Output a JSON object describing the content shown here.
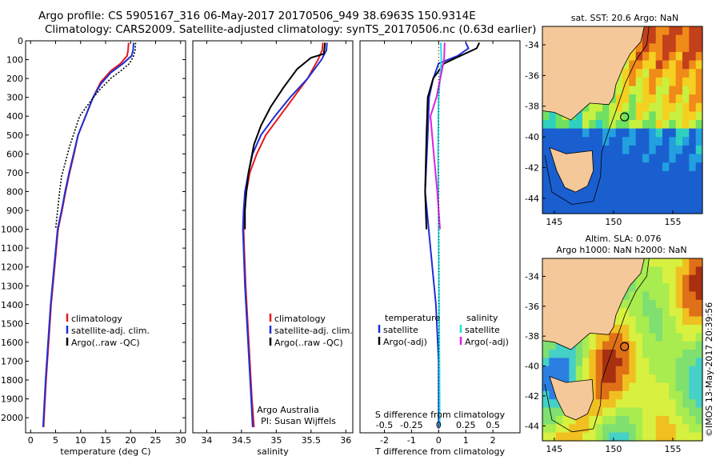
{
  "header": {
    "line1": "Argo profile: CS 5905167_316 06-May-2017 20170506_949 38.6963S 150.9314E",
    "line2": "Climatology: CARS2009. Satellite-adjusted climatology: synTS_20170506.nc (0.63d earlier)"
  },
  "colors": {
    "climatology": "#e31a1c",
    "satellite": "#1f2fd6",
    "argo": "#000000",
    "sal_satellite": "#22dddd",
    "sal_argo": "#dd22dd",
    "land": "#f5c89a"
  },
  "chart_data": [
    {
      "type": "line",
      "id": "temperature",
      "xlabel": "temperature (deg C)",
      "xlim": [
        -1,
        31
      ],
      "ylim": [
        0,
        2080
      ],
      "xticks": [
        0,
        5,
        10,
        15,
        20,
        25,
        30
      ],
      "yticks": [
        0,
        100,
        200,
        300,
        400,
        500,
        600,
        700,
        800,
        900,
        1000,
        1100,
        1200,
        1300,
        1400,
        1500,
        1600,
        1700,
        1800,
        1900,
        2000
      ],
      "legend": [
        "climatology",
        "satellite-adj. clim.",
        "Argo(..raw -QC)"
      ],
      "series": [
        {
          "name": "climatology",
          "style": "solid",
          "color": "#e31a1c",
          "points": [
            [
              19.6,
              10
            ],
            [
              19.5,
              50
            ],
            [
              19.3,
              80
            ],
            [
              18,
              120
            ],
            [
              16,
              160
            ],
            [
              14,
              220
            ],
            [
              12.5,
              300
            ],
            [
              11,
              400
            ],
            [
              9.5,
              500
            ],
            [
              8.7,
              600
            ],
            [
              7.8,
              700
            ],
            [
              7,
              800
            ],
            [
              6.3,
              900
            ],
            [
              5.5,
              1000
            ],
            [
              4.8,
              1200
            ],
            [
              4.1,
              1400
            ],
            [
              3.6,
              1600
            ],
            [
              3.1,
              1800
            ],
            [
              2.7,
              2000
            ],
            [
              2.6,
              2050
            ]
          ]
        },
        {
          "name": "satellite-adj. clim.",
          "style": "solid",
          "color": "#1f2fd6",
          "points": [
            [
              20.6,
              10
            ],
            [
              20.5,
              50
            ],
            [
              20.2,
              80
            ],
            [
              18.5,
              120
            ],
            [
              16,
              170
            ],
            [
              14,
              230
            ],
            [
              12.5,
              300
            ],
            [
              11,
              400
            ],
            [
              9.5,
              500
            ],
            [
              8.6,
              600
            ],
            [
              7.7,
              700
            ],
            [
              6.9,
              800
            ],
            [
              6.2,
              900
            ],
            [
              5.4,
              1000
            ],
            [
              4.7,
              1200
            ],
            [
              4.0,
              1400
            ],
            [
              3.5,
              1600
            ],
            [
              3.0,
              1800
            ],
            [
              2.6,
              2000
            ],
            [
              2.5,
              2050
            ]
          ]
        },
        {
          "name": "Argo(..raw -QC)",
          "style": "dashed",
          "color": "#000000",
          "points": [
            [
              21,
              10
            ],
            [
              20.9,
              50
            ],
            [
              20.6,
              80
            ],
            [
              19.8,
              120
            ],
            [
              18,
              160
            ],
            [
              16,
              200
            ],
            [
              13.8,
              260
            ],
            [
              12,
              320
            ],
            [
              9.8,
              400
            ],
            [
              8.8,
              480
            ],
            [
              7.8,
              560
            ],
            [
              7,
              640
            ],
            [
              6.2,
              720
            ],
            [
              5.8,
              800
            ],
            [
              5.4,
              900
            ],
            [
              5,
              1000
            ]
          ]
        }
      ]
    },
    {
      "type": "line",
      "id": "salinity",
      "xlabel": "salinity",
      "xlim": [
        33.8,
        36.1
      ],
      "ylim": [
        0,
        2080
      ],
      "xticks": [
        34,
        34.5,
        35,
        35.5,
        36
      ],
      "tick_labels": [
        "34",
        "34.5",
        "35",
        "35.5",
        "36"
      ],
      "legend": [
        "climatology",
        "satellite-adj. clim.",
        "Argo(..raw -QC)"
      ],
      "annotations": [
        "Argo Australia",
        "PI: Susan Wijffels"
      ],
      "series": [
        {
          "name": "climatology",
          "color": "#e31a1c",
          "points": [
            [
              35.67,
              10
            ],
            [
              35.66,
              50
            ],
            [
              35.6,
              100
            ],
            [
              35.45,
              200
            ],
            [
              35.25,
              300
            ],
            [
              35.05,
              400
            ],
            [
              34.85,
              500
            ],
            [
              34.72,
              600
            ],
            [
              34.62,
              700
            ],
            [
              34.57,
              800
            ],
            [
              34.54,
              900
            ],
            [
              34.53,
              1000
            ],
            [
              34.54,
              1100
            ],
            [
              34.56,
              1300
            ],
            [
              34.59,
              1500
            ],
            [
              34.62,
              1700
            ],
            [
              34.65,
              1900
            ],
            [
              34.68,
              2050
            ]
          ]
        },
        {
          "name": "satellite-adj. clim.",
          "color": "#1f2fd6",
          "points": [
            [
              35.73,
              10
            ],
            [
              35.72,
              50
            ],
            [
              35.65,
              100
            ],
            [
              35.45,
              200
            ],
            [
              35.2,
              300
            ],
            [
              34.98,
              400
            ],
            [
              34.78,
              500
            ],
            [
              34.66,
              600
            ],
            [
              34.6,
              700
            ],
            [
              34.55,
              800
            ],
            [
              34.53,
              900
            ],
            [
              34.52,
              1000
            ],
            [
              34.53,
              1100
            ],
            [
              34.55,
              1300
            ],
            [
              34.58,
              1500
            ],
            [
              34.61,
              1700
            ],
            [
              34.64,
              1900
            ],
            [
              34.66,
              2050
            ]
          ]
        },
        {
          "name": "Argo(..raw -QC)",
          "color": "#000000",
          "points": [
            [
              35.7,
              10
            ],
            [
              35.69,
              50
            ],
            [
              35.68,
              70
            ],
            [
              35.5,
              90
            ],
            [
              35.3,
              150
            ],
            [
              35.1,
              250
            ],
            [
              34.92,
              350
            ],
            [
              34.78,
              450
            ],
            [
              34.68,
              550
            ],
            [
              34.6,
              700
            ],
            [
              34.57,
              800
            ],
            [
              34.55,
              900
            ],
            [
              34.55,
              1000
            ]
          ]
        }
      ]
    },
    {
      "type": "line",
      "id": "differences",
      "xlabel": "T difference from climatology",
      "xlabel_top": "S difference from climatology",
      "xlim": [
        -2.9,
        3.0
      ],
      "ylim": [
        0,
        2080
      ],
      "xticks": [
        -2,
        -1,
        0,
        1,
        2
      ],
      "s_ticks": [
        -0.5,
        -0.25,
        0,
        0.25,
        0.5
      ],
      "s_tick_labels": [
        "-0.5",
        "-0.25",
        "0",
        "0.25",
        "0.5"
      ],
      "legend_left": {
        "title": "temperature",
        "items": [
          "satellite",
          "Argo(-adj)"
        ]
      },
      "legend_right": {
        "title": "salinity",
        "items": [
          "satellite",
          "Argo(-adj)"
        ]
      },
      "series": [
        {
          "name": "temperature satellite",
          "color": "#1f2fd6",
          "points": [
            [
              1,
              10
            ],
            [
              1.1,
              40
            ],
            [
              0.7,
              80
            ],
            [
              0,
              120
            ],
            [
              -0.2,
              200
            ],
            [
              -0.35,
              300
            ],
            [
              -0.4,
              500
            ],
            [
              -0.5,
              800
            ],
            [
              -0.3,
              1100
            ],
            [
              -0.1,
              1400
            ],
            [
              0,
              1700
            ],
            [
              0,
              2050
            ]
          ]
        },
        {
          "name": "temperature Argo(-adj)",
          "color": "#000000",
          "points": [
            [
              1.5,
              10
            ],
            [
              1.4,
              40
            ],
            [
              0.8,
              80
            ],
            [
              0.2,
              120
            ],
            [
              -0.2,
              200
            ],
            [
              -0.4,
              300
            ],
            [
              -0.45,
              500
            ],
            [
              -0.5,
              800
            ],
            [
              -0.45,
              1000
            ]
          ]
        },
        {
          "name": "salinity satellite",
          "color": "#22dddd",
          "points": [
            [
              0.08,
              10
            ],
            [
              0.1,
              100
            ],
            [
              0,
              300
            ],
            [
              -0.02,
              600
            ],
            [
              0,
              1000
            ],
            [
              0.02,
              1500
            ],
            [
              0.04,
              2050
            ]
          ]
        },
        {
          "name": "salinity Argo(-adj)",
          "color": "#dd22dd",
          "points": [
            [
              0.22,
              10
            ],
            [
              0.2,
              100
            ],
            [
              -0.08,
              300
            ],
            [
              -0.3,
              400
            ],
            [
              -0.18,
              600
            ],
            [
              -0.05,
              800
            ],
            [
              0.05,
              1000
            ]
          ]
        }
      ]
    },
    {
      "type": "heatmap",
      "id": "sst_map",
      "title": "sat. SST: 20.6  Argo: NaN",
      "xlim": [
        144,
        157.5
      ],
      "ylim": [
        -45,
        -32.8
      ],
      "xticks": [
        145,
        150,
        155
      ],
      "yticks": [
        -34,
        -36,
        -38,
        -40,
        -42,
        -44
      ],
      "argo_position": [
        150.93,
        -38.7
      ]
    },
    {
      "type": "heatmap",
      "id": "sla_map",
      "title": "Altim. SLA: 0.076",
      "subtitle": "Argo h1000: NaN h2000: NaN",
      "xlim": [
        144,
        157.5
      ],
      "ylim": [
        -45,
        -32.8
      ],
      "xticks": [
        145,
        150,
        155
      ],
      "yticks": [
        -34,
        -36,
        -38,
        -40,
        -42,
        -44
      ],
      "argo_position": [
        150.93,
        -38.7
      ]
    }
  ],
  "side_label": "©IMOS 13-May-2017 20:39:56"
}
